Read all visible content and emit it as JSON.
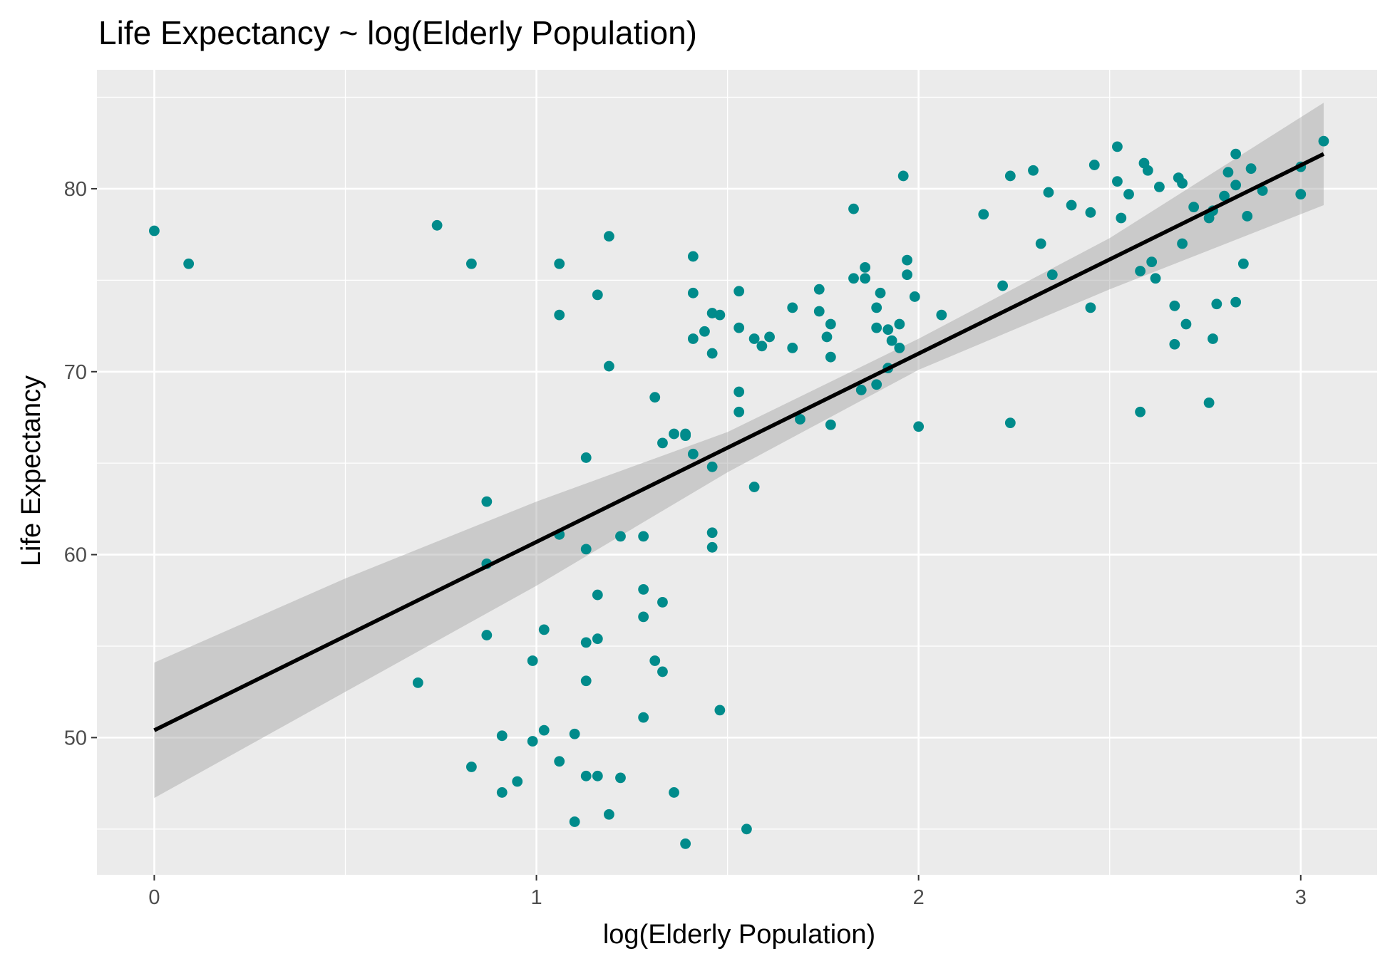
{
  "chart_data": {
    "type": "scatter",
    "title": "Life Expectancy ~ log(Elderly Population)",
    "xlabel": "log(Elderly Population)",
    "ylabel": "Life Expectancy",
    "xlim": [
      -0.15,
      3.2
    ],
    "ylim": [
      42.5,
      86.5
    ],
    "x_ticks": [
      0,
      1,
      2,
      3
    ],
    "x_tick_labels": [
      "0",
      "1",
      "2",
      "3"
    ],
    "y_ticks": [
      50,
      60,
      70,
      80
    ],
    "y_tick_labels": [
      "50",
      "60",
      "70",
      "80"
    ],
    "grid": true,
    "legend": "none",
    "colors": {
      "points": "#008B8B",
      "fit_line": "#000000",
      "confidence_band": "#999999",
      "panel_background": "#EBEBEB",
      "grid": "#FFFFFF"
    },
    "series": [
      {
        "type": "scatter",
        "points": [
          {
            "x": 0.0,
            "y": 77.7
          },
          {
            "x": 0.09,
            "y": 75.9
          },
          {
            "x": 0.69,
            "y": 53.0
          },
          {
            "x": 0.74,
            "y": 78.0
          },
          {
            "x": 0.83,
            "y": 75.9
          },
          {
            "x": 0.83,
            "y": 48.4
          },
          {
            "x": 0.87,
            "y": 62.9
          },
          {
            "x": 0.87,
            "y": 59.5
          },
          {
            "x": 0.87,
            "y": 55.6
          },
          {
            "x": 0.91,
            "y": 50.1
          },
          {
            "x": 0.91,
            "y": 47.0
          },
          {
            "x": 0.95,
            "y": 47.6
          },
          {
            "x": 0.99,
            "y": 54.2
          },
          {
            "x": 0.99,
            "y": 49.8
          },
          {
            "x": 1.02,
            "y": 55.9
          },
          {
            "x": 1.02,
            "y": 50.4
          },
          {
            "x": 1.06,
            "y": 75.9
          },
          {
            "x": 1.06,
            "y": 73.1
          },
          {
            "x": 1.06,
            "y": 61.1
          },
          {
            "x": 1.06,
            "y": 48.7
          },
          {
            "x": 1.1,
            "y": 50.2
          },
          {
            "x": 1.1,
            "y": 45.4
          },
          {
            "x": 1.13,
            "y": 65.3
          },
          {
            "x": 1.13,
            "y": 60.3
          },
          {
            "x": 1.13,
            "y": 55.2
          },
          {
            "x": 1.13,
            "y": 53.1
          },
          {
            "x": 1.13,
            "y": 47.9
          },
          {
            "x": 1.16,
            "y": 74.2
          },
          {
            "x": 1.16,
            "y": 57.8
          },
          {
            "x": 1.16,
            "y": 55.4
          },
          {
            "x": 1.16,
            "y": 47.9
          },
          {
            "x": 1.19,
            "y": 77.4
          },
          {
            "x": 1.19,
            "y": 70.3
          },
          {
            "x": 1.19,
            "y": 45.8
          },
          {
            "x": 1.22,
            "y": 61.0
          },
          {
            "x": 1.22,
            "y": 47.8
          },
          {
            "x": 1.28,
            "y": 61.0
          },
          {
            "x": 1.28,
            "y": 58.1
          },
          {
            "x": 1.28,
            "y": 56.6
          },
          {
            "x": 1.28,
            "y": 51.1
          },
          {
            "x": 1.31,
            "y": 68.6
          },
          {
            "x": 1.31,
            "y": 54.2
          },
          {
            "x": 1.33,
            "y": 66.1
          },
          {
            "x": 1.33,
            "y": 57.4
          },
          {
            "x": 1.33,
            "y": 53.6
          },
          {
            "x": 1.36,
            "y": 66.6
          },
          {
            "x": 1.36,
            "y": 47.0
          },
          {
            "x": 1.39,
            "y": 66.6
          },
          {
            "x": 1.39,
            "y": 66.5
          },
          {
            "x": 1.39,
            "y": 44.2
          },
          {
            "x": 1.41,
            "y": 76.3
          },
          {
            "x": 1.41,
            "y": 74.3
          },
          {
            "x": 1.41,
            "y": 71.8
          },
          {
            "x": 1.41,
            "y": 65.5
          },
          {
            "x": 1.44,
            "y": 72.2
          },
          {
            "x": 1.46,
            "y": 73.2
          },
          {
            "x": 1.46,
            "y": 71.0
          },
          {
            "x": 1.46,
            "y": 64.8
          },
          {
            "x": 1.46,
            "y": 61.2
          },
          {
            "x": 1.46,
            "y": 60.4
          },
          {
            "x": 1.48,
            "y": 73.1
          },
          {
            "x": 1.48,
            "y": 51.5
          },
          {
            "x": 1.53,
            "y": 74.4
          },
          {
            "x": 1.53,
            "y": 72.4
          },
          {
            "x": 1.53,
            "y": 68.9
          },
          {
            "x": 1.53,
            "y": 67.8
          },
          {
            "x": 1.55,
            "y": 45.0
          },
          {
            "x": 1.57,
            "y": 63.7
          },
          {
            "x": 1.57,
            "y": 71.8
          },
          {
            "x": 1.59,
            "y": 71.4
          },
          {
            "x": 1.61,
            "y": 71.9
          },
          {
            "x": 1.67,
            "y": 73.5
          },
          {
            "x": 1.67,
            "y": 71.3
          },
          {
            "x": 1.69,
            "y": 67.4
          },
          {
            "x": 1.74,
            "y": 74.5
          },
          {
            "x": 1.74,
            "y": 73.3
          },
          {
            "x": 1.76,
            "y": 71.9
          },
          {
            "x": 1.77,
            "y": 72.6
          },
          {
            "x": 1.77,
            "y": 70.8
          },
          {
            "x": 1.77,
            "y": 67.1
          },
          {
            "x": 1.83,
            "y": 78.9
          },
          {
            "x": 1.83,
            "y": 75.1
          },
          {
            "x": 1.85,
            "y": 69.0
          },
          {
            "x": 1.86,
            "y": 75.7
          },
          {
            "x": 1.86,
            "y": 75.1
          },
          {
            "x": 1.89,
            "y": 73.5
          },
          {
            "x": 1.89,
            "y": 72.4
          },
          {
            "x": 1.89,
            "y": 69.3
          },
          {
            "x": 1.9,
            "y": 74.3
          },
          {
            "x": 1.92,
            "y": 72.3
          },
          {
            "x": 1.92,
            "y": 70.2
          },
          {
            "x": 1.93,
            "y": 71.7
          },
          {
            "x": 1.95,
            "y": 72.6
          },
          {
            "x": 1.95,
            "y": 71.3
          },
          {
            "x": 1.96,
            "y": 80.7
          },
          {
            "x": 1.97,
            "y": 76.1
          },
          {
            "x": 1.97,
            "y": 75.3
          },
          {
            "x": 1.99,
            "y": 74.1
          },
          {
            "x": 2.0,
            "y": 67.0
          },
          {
            "x": 2.06,
            "y": 73.1
          },
          {
            "x": 2.17,
            "y": 78.6
          },
          {
            "x": 2.22,
            "y": 74.7
          },
          {
            "x": 2.24,
            "y": 80.7
          },
          {
            "x": 2.24,
            "y": 67.2
          },
          {
            "x": 2.3,
            "y": 81.0
          },
          {
            "x": 2.32,
            "y": 77.0
          },
          {
            "x": 2.34,
            "y": 79.8
          },
          {
            "x": 2.35,
            "y": 75.3
          },
          {
            "x": 2.4,
            "y": 79.1
          },
          {
            "x": 2.45,
            "y": 78.7
          },
          {
            "x": 2.45,
            "y": 73.5
          },
          {
            "x": 2.46,
            "y": 81.3
          },
          {
            "x": 2.52,
            "y": 82.3
          },
          {
            "x": 2.52,
            "y": 80.4
          },
          {
            "x": 2.53,
            "y": 78.4
          },
          {
            "x": 2.55,
            "y": 79.7
          },
          {
            "x": 2.58,
            "y": 75.5
          },
          {
            "x": 2.58,
            "y": 67.8
          },
          {
            "x": 2.59,
            "y": 81.4
          },
          {
            "x": 2.6,
            "y": 81.0
          },
          {
            "x": 2.61,
            "y": 76.0
          },
          {
            "x": 2.62,
            "y": 75.1
          },
          {
            "x": 2.63,
            "y": 80.1
          },
          {
            "x": 2.67,
            "y": 73.6
          },
          {
            "x": 2.67,
            "y": 71.5
          },
          {
            "x": 2.68,
            "y": 80.6
          },
          {
            "x": 2.69,
            "y": 80.3
          },
          {
            "x": 2.69,
            "y": 77.0
          },
          {
            "x": 2.7,
            "y": 72.6
          },
          {
            "x": 2.72,
            "y": 79.0
          },
          {
            "x": 2.76,
            "y": 78.4
          },
          {
            "x": 2.76,
            "y": 68.3
          },
          {
            "x": 2.77,
            "y": 78.8
          },
          {
            "x": 2.77,
            "y": 71.8
          },
          {
            "x": 2.78,
            "y": 73.7
          },
          {
            "x": 2.8,
            "y": 79.6
          },
          {
            "x": 2.81,
            "y": 80.9
          },
          {
            "x": 2.83,
            "y": 81.9
          },
          {
            "x": 2.83,
            "y": 80.2
          },
          {
            "x": 2.83,
            "y": 73.8
          },
          {
            "x": 2.85,
            "y": 75.9
          },
          {
            "x": 2.86,
            "y": 78.5
          },
          {
            "x": 2.87,
            "y": 81.1
          },
          {
            "x": 2.9,
            "y": 79.9
          },
          {
            "x": 3.0,
            "y": 81.2
          },
          {
            "x": 3.0,
            "y": 79.7
          },
          {
            "x": 3.06,
            "y": 82.6
          }
        ]
      },
      {
        "type": "line",
        "x": [
          0.0,
          3.06
        ],
        "y": [
          50.4,
          81.9
        ]
      },
      {
        "type": "area",
        "x": [
          0.0,
          0.5,
          1.0,
          1.5,
          2.0,
          2.5,
          3.06
        ],
        "upper": [
          54.1,
          58.7,
          62.9,
          66.7,
          71.8,
          77.3,
          84.7
        ],
        "lower": [
          46.7,
          52.5,
          58.3,
          64.5,
          70.1,
          74.5,
          79.1
        ]
      }
    ]
  }
}
